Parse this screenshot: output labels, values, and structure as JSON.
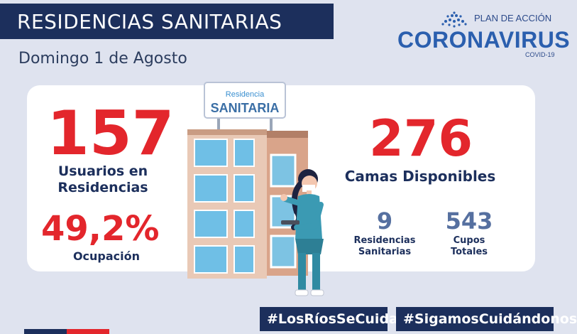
{
  "header": {
    "title": "RESIDENCIAS SANITARIAS",
    "date": "Domingo 1 de Agosto"
  },
  "logo": {
    "plan": "PLAN DE ACCIÓN",
    "corona": "CORONAVIRUS",
    "covid": "COVID-19"
  },
  "sign": {
    "top": "Residencia",
    "bottom": "SANITARIA"
  },
  "stats": {
    "usuarios_value": "157",
    "usuarios_label_1": "Usuarios en",
    "usuarios_label_2": "Residencias",
    "ocupacion_value": "49,2%",
    "ocupacion_label": "Ocupación",
    "camas_value": "276",
    "camas_label": "Camas Disponibles",
    "residencias_value": "9",
    "residencias_label_1": "Residencias",
    "residencias_label_2": "Sanitarias",
    "cupos_value": "543",
    "cupos_label_1": "Cupos",
    "cupos_label_2": "Totales"
  },
  "hashtags": {
    "left": "#LosRíosSeCuida",
    "right": "#SigamosCuidándonos"
  },
  "colors": {
    "navy": "#1c2f5c",
    "red": "#e3262c",
    "blue": "#2b5fae",
    "background": "#dfe3ef"
  }
}
